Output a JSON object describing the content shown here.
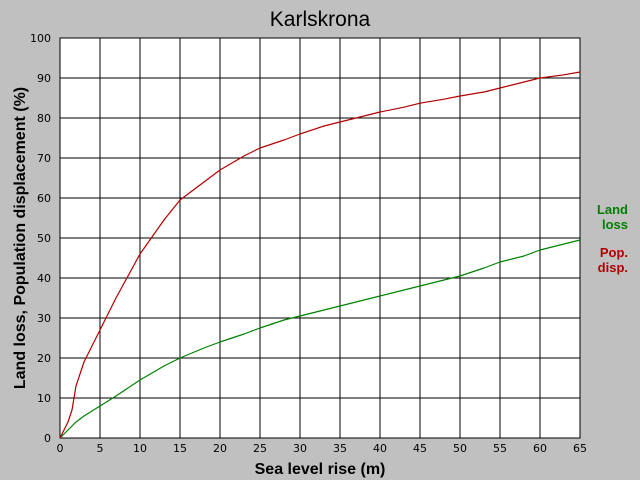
{
  "chart_data": {
    "type": "line",
    "title": "Karlskrona",
    "xlabel": "Sea level rise (m)",
    "ylabel": "Land loss, Population displacement (%)",
    "xlim": [
      0,
      65
    ],
    "ylim": [
      0,
      100
    ],
    "xticks": [
      0,
      5,
      10,
      15,
      20,
      25,
      30,
      35,
      40,
      45,
      50,
      55,
      60,
      65
    ],
    "yticks": [
      0,
      10,
      20,
      30,
      40,
      50,
      60,
      70,
      80,
      90,
      100
    ],
    "grid": true,
    "legend_position": "right",
    "series": [
      {
        "name": "Land loss",
        "legend_lines": [
          "Land",
          "loss"
        ],
        "color": "#008000",
        "x": [
          0,
          1,
          2,
          3,
          5,
          7,
          10,
          13,
          15,
          18,
          20,
          23,
          25,
          28,
          30,
          33,
          35,
          38,
          40,
          43,
          45,
          48,
          50,
          53,
          55,
          58,
          60,
          63,
          65
        ],
        "y": [
          0,
          2,
          4,
          5.5,
          8,
          10.5,
          14.5,
          18,
          20,
          22.5,
          24,
          26,
          27.5,
          29.5,
          30.5,
          32,
          33,
          34.5,
          35.5,
          37,
          38,
          39.5,
          40.5,
          42.5,
          44,
          45.5,
          47,
          48.5,
          49.5
        ]
      },
      {
        "name": "Pop. disp.",
        "legend_lines": [
          "Pop.",
          "disp."
        ],
        "color": "#b00000",
        "x": [
          0,
          1,
          1.5,
          2,
          3,
          4,
          5,
          7,
          10,
          13,
          15,
          18,
          20,
          23,
          25,
          28,
          30,
          33,
          35,
          38,
          40,
          43,
          45,
          48,
          50,
          53,
          55,
          58,
          60,
          63,
          65
        ],
        "y": [
          0,
          4,
          7,
          13,
          19,
          23,
          27,
          35,
          46,
          54.5,
          59.5,
          64,
          67,
          70.5,
          72.5,
          74.5,
          76,
          78,
          79,
          80.5,
          81.5,
          82.7,
          83.7,
          84.7,
          85.5,
          86.5,
          87.5,
          89,
          90,
          90.8,
          91.5
        ]
      }
    ]
  }
}
